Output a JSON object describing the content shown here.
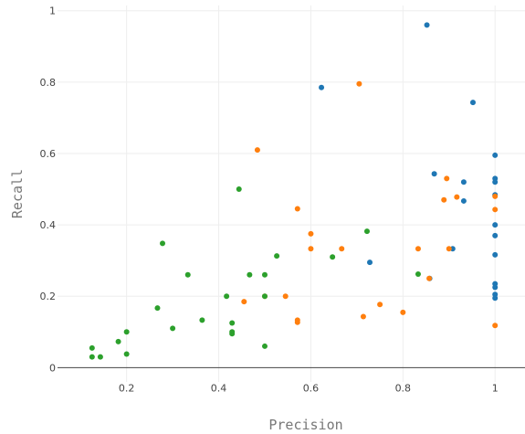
{
  "chart_data": {
    "type": "scatter",
    "xlabel": "Precision",
    "ylabel": "Recall",
    "xlim": [
      0.05,
      1.065
    ],
    "ylim": [
      -0.04,
      1.03
    ],
    "grid": true,
    "legend": "none",
    "xticks": [
      {
        "v": 0.2,
        "label": "0.2"
      },
      {
        "v": 0.4,
        "label": "0.4"
      },
      {
        "v": 0.6,
        "label": "0.6"
      },
      {
        "v": 0.8,
        "label": "0.8"
      },
      {
        "v": 1,
        "label": "1"
      }
    ],
    "yticks": [
      {
        "v": 0,
        "label": "0"
      },
      {
        "v": 0.2,
        "label": "0.2"
      },
      {
        "v": 0.4,
        "label": "0.4"
      },
      {
        "v": 0.6,
        "label": "0.6"
      },
      {
        "v": 0.8,
        "label": "0.8"
      },
      {
        "v": 1,
        "label": "1"
      }
    ],
    "series": [
      {
        "color": "#1f77b4",
        "points": [
          [
            0.852,
            0.96
          ],
          [
            0.623,
            0.785
          ],
          [
            0.952,
            0.743
          ],
          [
            1.0,
            0.595
          ],
          [
            0.868,
            0.543
          ],
          [
            0.932,
            0.52
          ],
          [
            0.932,
            0.467
          ],
          [
            1.0,
            0.53
          ],
          [
            1.0,
            0.52
          ],
          [
            1.0,
            0.484
          ],
          [
            1.0,
            0.4
          ],
          [
            1.0,
            0.37
          ],
          [
            0.908,
            0.333
          ],
          [
            0.728,
            0.295
          ],
          [
            1.0,
            0.316
          ],
          [
            1.0,
            0.235
          ],
          [
            1.0,
            0.225
          ],
          [
            1.0,
            0.205
          ],
          [
            1.0,
            0.195
          ],
          [
            0.858,
            0.25
          ]
        ]
      },
      {
        "color": "#ff7f0e",
        "points": [
          [
            0.705,
            0.795
          ],
          [
            0.484,
            0.61
          ],
          [
            0.571,
            0.445
          ],
          [
            0.6,
            0.375
          ],
          [
            0.6,
            0.333
          ],
          [
            0.667,
            0.333
          ],
          [
            0.5,
            0.2
          ],
          [
            0.455,
            0.185
          ],
          [
            0.545,
            0.2
          ],
          [
            0.571,
            0.133
          ],
          [
            0.571,
            0.127
          ],
          [
            0.714,
            0.143
          ],
          [
            0.75,
            0.177
          ],
          [
            0.8,
            0.155
          ],
          [
            0.833,
            0.333
          ],
          [
            0.857,
            0.25
          ],
          [
            0.889,
            0.47
          ],
          [
            0.895,
            0.53
          ],
          [
            0.917,
            0.478
          ],
          [
            1.0,
            0.48
          ],
          [
            1.0,
            0.443
          ],
          [
            0.9,
            0.333
          ],
          [
            1.0,
            0.118
          ]
        ]
      },
      {
        "color": "#2ca02c",
        "points": [
          [
            0.125,
            0.055
          ],
          [
            0.125,
            0.03
          ],
          [
            0.143,
            0.03
          ],
          [
            0.182,
            0.073
          ],
          [
            0.2,
            0.1
          ],
          [
            0.2,
            0.038
          ],
          [
            0.267,
            0.167
          ],
          [
            0.3,
            0.11
          ],
          [
            0.278,
            0.348
          ],
          [
            0.333,
            0.26
          ],
          [
            0.364,
            0.133
          ],
          [
            0.417,
            0.2
          ],
          [
            0.429,
            0.125
          ],
          [
            0.429,
            0.1
          ],
          [
            0.429,
            0.095
          ],
          [
            0.444,
            0.5
          ],
          [
            0.467,
            0.26
          ],
          [
            0.5,
            0.26
          ],
          [
            0.5,
            0.2
          ],
          [
            0.5,
            0.06
          ],
          [
            0.526,
            0.313
          ],
          [
            0.647,
            0.31
          ],
          [
            0.722,
            0.382
          ],
          [
            0.833,
            0.262
          ]
        ]
      }
    ]
  }
}
